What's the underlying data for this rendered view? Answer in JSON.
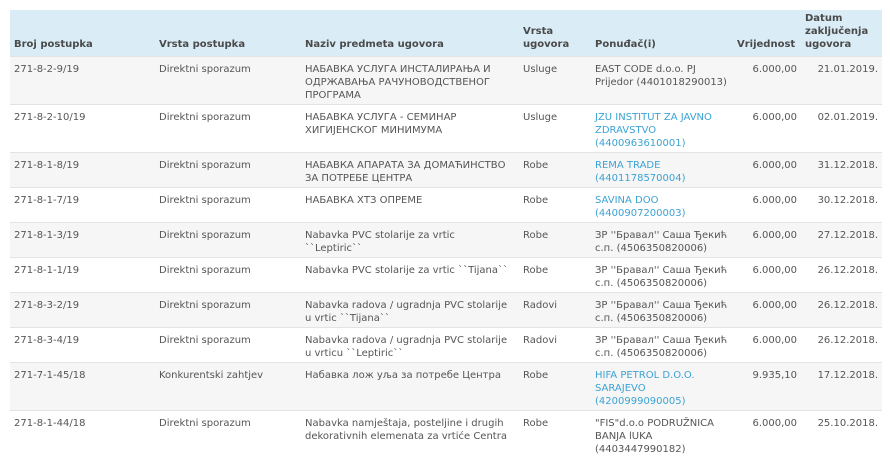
{
  "table": {
    "headers": {
      "broj": "Broj postupka",
      "vrsta_postupka": "Vrsta postupka",
      "naziv": "Naziv predmeta ugovora",
      "vrsta_ugovora": "Vrsta ugovora",
      "ponudjac": "Ponuđač(i)",
      "vrijednost": "Vrijednost",
      "datum": "Datum zaključenja ugovora"
    },
    "link_color": "#3ba3d4",
    "header_bg": "#daecf6",
    "rows": [
      {
        "broj": "271-8-2-9/19",
        "vrsta_postupka": "Direktni sporazum",
        "naziv": "НАБАВКА УСЛУГА ИНСТАЛИРАЊА И ОДРЖАВАЊА РАЧУНОВОДСТВЕНОГ ПРОГРАМА",
        "vrsta_ugovora": "Usluge",
        "ponudjac": "EAST CODE d.o.o. PJ Prijedor (4401018290013)",
        "ponudjac_link": false,
        "vrijednost": "6.000,00",
        "datum": "21.01.2019."
      },
      {
        "broj": "271-8-2-10/19",
        "vrsta_postupka": "Direktni sporazum",
        "naziv": "НАБАВКА УСЛУГА - СЕМИНАР ХИГИЈЕНСКОГ МИНИМУМА",
        "vrsta_ugovora": "Usluge",
        "ponudjac": "JZU INSTITUT ZA JAVNO ZDRAVSTVO (4400963610001)",
        "ponudjac_link": true,
        "vrijednost": "6.000,00",
        "datum": "02.01.2019."
      },
      {
        "broj": "271-8-1-8/19",
        "vrsta_postupka": "Direktni sporazum",
        "naziv": "НАБАВКА АПАРАТА ЗА ДОМАЋИНСТВО ЗА ПОТРЕБЕ ЦЕНТРА",
        "vrsta_ugovora": "Robe",
        "ponudjac": "REMA TRADE (4401178570004)",
        "ponudjac_link": true,
        "vrijednost": "6.000,00",
        "datum": "31.12.2018."
      },
      {
        "broj": "271-8-1-7/19",
        "vrsta_postupka": "Direktni sporazum",
        "naziv": "НАБАВКА ХТЗ ОПРЕМЕ",
        "vrsta_ugovora": "Robe",
        "ponudjac": "SAVINA DOO (4400907200003)",
        "ponudjac_link": true,
        "vrijednost": "6.000,00",
        "datum": "30.12.2018."
      },
      {
        "broj": "271-8-1-3/19",
        "vrsta_postupka": "Direktni sporazum",
        "naziv": "Nabavka PVC stolarije za vrtic ``Leptiric``",
        "vrsta_ugovora": "Robe",
        "ponudjac": "ЗР ''Бравал'' Саша Ђекић с.п. (4506350820006)",
        "ponudjac_link": false,
        "vrijednost": "6.000,00",
        "datum": "27.12.2018."
      },
      {
        "broj": "271-8-1-1/19",
        "vrsta_postupka": "Direktni sporazum",
        "naziv": "Nabavka PVC stolarije za vrtic ``Tijana``",
        "vrsta_ugovora": "Robe",
        "ponudjac": "ЗР ''Бравал'' Саша Ђекић с.п. (4506350820006)",
        "ponudjac_link": false,
        "vrijednost": "6.000,00",
        "datum": "26.12.2018."
      },
      {
        "broj": "271-8-3-2/19",
        "vrsta_postupka": "Direktni sporazum",
        "naziv": "Nabavka radova / ugradnja PVC stolarije u vrtic ``Tijana``",
        "vrsta_ugovora": "Radovi",
        "ponudjac": "ЗР ''Бравал'' Саша Ђекић с.п. (4506350820006)",
        "ponudjac_link": false,
        "vrijednost": "6.000,00",
        "datum": "26.12.2018."
      },
      {
        "broj": "271-8-3-4/19",
        "vrsta_postupka": "Direktni sporazum",
        "naziv": "Nabavka radova / ugradnja PVC stolarije u vrticu ``Leptiric``",
        "vrsta_ugovora": "Radovi",
        "ponudjac": "ЗР ''Бравал'' Саша Ђекић с.п. (4506350820006)",
        "ponudjac_link": false,
        "vrijednost": "6.000,00",
        "datum": "26.12.2018."
      },
      {
        "broj": "271-7-1-45/18",
        "vrsta_postupka": "Konkurentski zahtjev",
        "naziv": "Набавка лож уља за потребе Центра",
        "vrsta_ugovora": "Robe",
        "ponudjac": "HIFA PETROL D.O.O. SARAJEVO (4200999090005)",
        "ponudjac_link": true,
        "vrijednost": "9.935,10",
        "datum": "17.12.2018."
      },
      {
        "broj": "271-8-1-44/18",
        "vrsta_postupka": "Direktni sporazum",
        "naziv": "Nabavka namještaja, posteljine i drugih dekorativnih elemenata za vrtiće Centra",
        "vrsta_ugovora": "Robe",
        "ponudjac": "\"FIS\"d.o.o PODRUŽNICA BANJA lUKA (4403447990182)",
        "ponudjac_link": false,
        "vrijednost": "6.000,00",
        "datum": "25.10.2018."
      }
    ]
  }
}
